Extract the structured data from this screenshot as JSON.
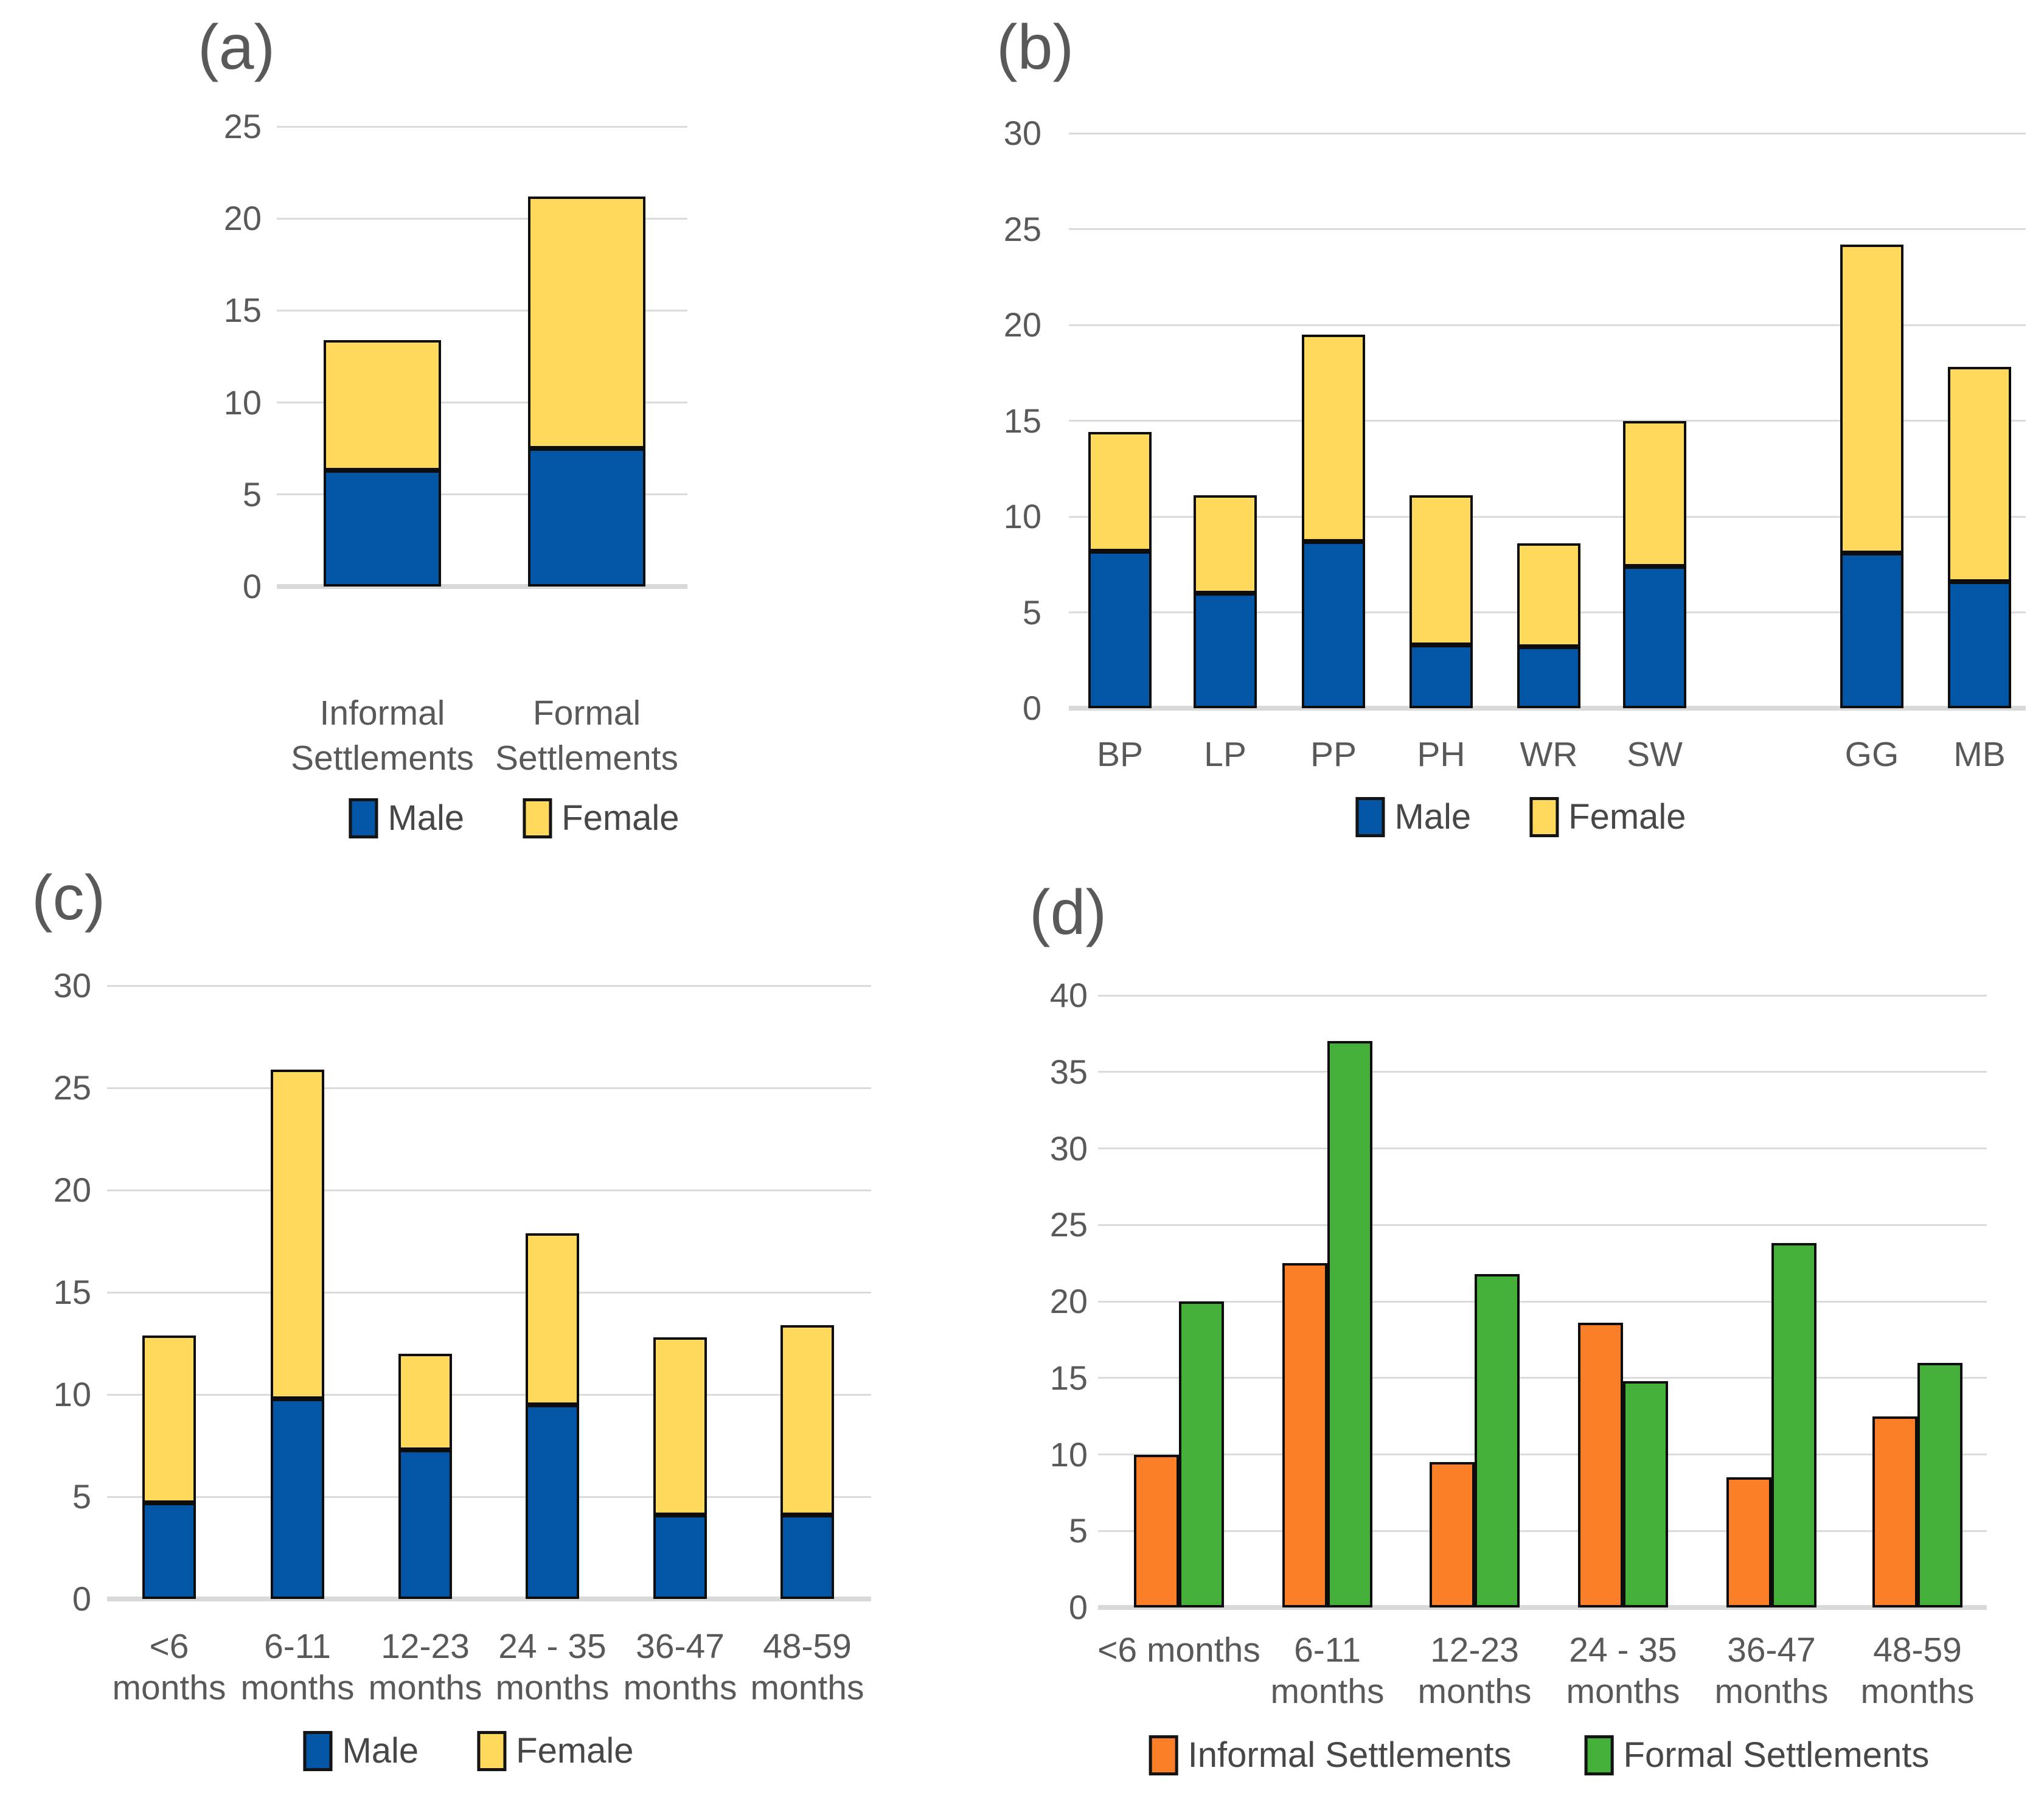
{
  "colors": {
    "male_blue": "#0356A5",
    "female_yellow": "#FFD95C",
    "informal_orange": "#FB7F28",
    "formal_green": "#44B03A",
    "gridline": "#DBDBDB",
    "axis_line": "#D9D9D9",
    "tick_text": "#595959",
    "legend_text": "#474747",
    "bar_border": "#0D0D0D"
  },
  "chart_data": [
    {
      "panel_label": "(a)",
      "type": "bar",
      "stacked": true,
      "categories": [
        "Informal Settlements",
        "Formal Settlements"
      ],
      "category_lines": [
        [
          "Informal",
          "Settlements"
        ],
        [
          "Formal",
          "Settlements"
        ]
      ],
      "series": [
        {
          "name": "Male",
          "color": "#0356A5",
          "values": [
            6.3,
            7.5
          ]
        },
        {
          "name": "Female",
          "color": "#FFD95C",
          "values": [
            7.1,
            13.7
          ]
        }
      ],
      "stack_totals": [
        13.4,
        21.2
      ],
      "ylim": [
        0,
        25
      ],
      "yticks": [
        0,
        5,
        10,
        15,
        20,
        25
      ],
      "grid": true,
      "legend_position": "bottom",
      "legend_entries": [
        "Male",
        "Female"
      ]
    },
    {
      "panel_label": "(b)",
      "type": "bar",
      "stacked": true,
      "categories": [
        "BP",
        "LP",
        "PP",
        "PH",
        "WR",
        "SW",
        "GG",
        "MB"
      ],
      "category_lines": [
        [
          "BP"
        ],
        [
          "LP"
        ],
        [
          "PP"
        ],
        [
          "PH"
        ],
        [
          "WR"
        ],
        [
          "SW"
        ],
        [
          "GG"
        ],
        [
          "MB"
        ]
      ],
      "series": [
        {
          "name": "Male",
          "color": "#0356A5",
          "values": [
            8.2,
            6.0,
            8.7,
            3.3,
            3.2,
            7.4,
            8.1,
            6.6
          ]
        },
        {
          "name": "Female",
          "color": "#FFD95C",
          "values": [
            6.2,
            5.1,
            10.8,
            7.8,
            5.4,
            7.6,
            16.1,
            11.2
          ]
        }
      ],
      "stack_totals": [
        14.4,
        11.1,
        19.5,
        11.1,
        8.6,
        15.0,
        24.2,
        17.8
      ],
      "ylim": [
        0,
        30
      ],
      "yticks": [
        0,
        5,
        10,
        15,
        20,
        25,
        30
      ],
      "grid": true,
      "legend_position": "bottom",
      "legend_entries": [
        "Male",
        "Female"
      ]
    },
    {
      "panel_label": "(c)",
      "type": "bar",
      "stacked": true,
      "categories": [
        "<6 months",
        "6-11 months",
        "12-23 months",
        "24 - 35 months",
        "36-47 months",
        "48-59 months"
      ],
      "category_lines": [
        [
          "<6",
          "months"
        ],
        [
          "6-11",
          "months"
        ],
        [
          "12-23",
          "months"
        ],
        [
          "24 - 35",
          "months"
        ],
        [
          "36-47",
          "months"
        ],
        [
          "48-59",
          "months"
        ]
      ],
      "series": [
        {
          "name": "Male",
          "color": "#0356A5",
          "values": [
            4.7,
            9.8,
            7.3,
            9.5,
            4.1,
            4.1
          ]
        },
        {
          "name": "Female",
          "color": "#FFD95C",
          "values": [
            8.2,
            16.1,
            4.7,
            8.4,
            8.7,
            9.3
          ]
        }
      ],
      "stack_totals": [
        12.9,
        25.9,
        12.0,
        17.9,
        12.8,
        13.4
      ],
      "ylim": [
        0,
        30
      ],
      "yticks": [
        0,
        5,
        10,
        15,
        20,
        25,
        30
      ],
      "grid": true,
      "legend_position": "bottom",
      "legend_entries": [
        "Male",
        "Female"
      ]
    },
    {
      "panel_label": "(d)",
      "type": "bar",
      "stacked": false,
      "categories": [
        "<6 months",
        "6-11 months",
        "12-23 months",
        "24 - 35 months",
        "36-47 months",
        "48-59 months"
      ],
      "category_lines": [
        [
          "<6 months"
        ],
        [
          "6-11",
          "months"
        ],
        [
          "12-23",
          "months"
        ],
        [
          "24 - 35",
          "months"
        ],
        [
          "36-47",
          "months"
        ],
        [
          "48-59",
          "months"
        ]
      ],
      "series": [
        {
          "name": "Informal Settlements",
          "color": "#FB7F28",
          "values": [
            10.0,
            22.5,
            9.5,
            18.6,
            8.5,
            12.5
          ]
        },
        {
          "name": "Formal Settlements",
          "color": "#44B03A",
          "values": [
            20.0,
            37.0,
            21.8,
            14.8,
            23.8,
            16.0
          ]
        }
      ],
      "ylim": [
        0,
        40
      ],
      "yticks": [
        0,
        5,
        10,
        15,
        20,
        25,
        30,
        35,
        40
      ],
      "grid": true,
      "legend_position": "bottom",
      "legend_entries": [
        "Informal Settlements",
        "Formal Settlements"
      ]
    }
  ]
}
